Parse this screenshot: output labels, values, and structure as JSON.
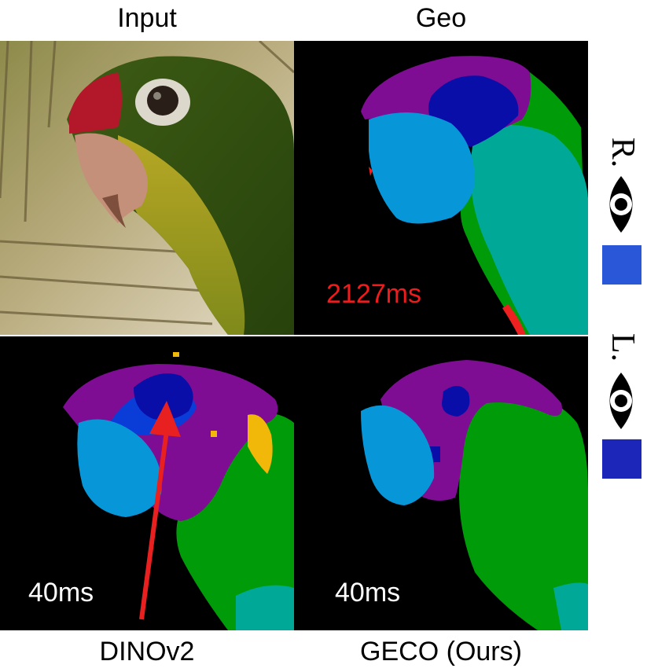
{
  "columns": {
    "input": "Input",
    "geo": "Geo",
    "dinov2": "DINOv2",
    "geco": "GECO (Ours)"
  },
  "timings": {
    "geo": "2127ms",
    "dinov2": "40ms",
    "geco": "40ms"
  },
  "legend": {
    "right": {
      "label": "R.",
      "icon": "eye-icon",
      "color": "#2a57d8"
    },
    "left": {
      "label": "L.",
      "icon": "eye-icon",
      "color": "#1c26b8"
    }
  },
  "colors": {
    "purple": "#7e0d93",
    "dark_blue": "#0a0ea8",
    "mid_blue": "#0a3cd8",
    "light_blue": "#0797d8",
    "teal": "#00a897",
    "green": "#009b09",
    "yellow": "#f1b709",
    "red": "#ee2020",
    "geo_time_color": "#ee1c1c",
    "white_time_color": "#ffffff",
    "arrow": "#e8201f"
  }
}
